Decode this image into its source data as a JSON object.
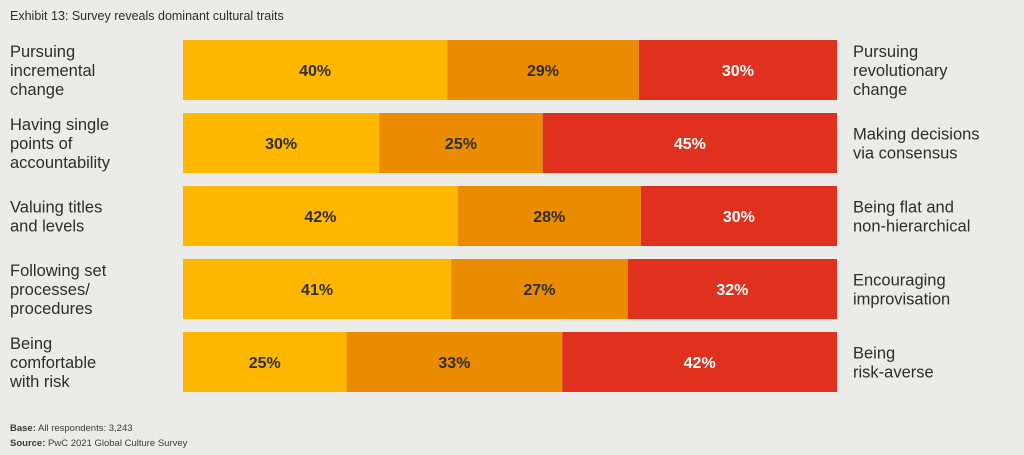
{
  "title": "Exhibit 13: Survey reveals dominant cultural traits",
  "colors": {
    "left": "#ffb700",
    "middle": "#eb8c00",
    "right": "#e0301e",
    "background": "#ebebea"
  },
  "chart_data": {
    "type": "bar",
    "orientation": "horizontal",
    "stacked": true,
    "normalized": true,
    "categories": [
      {
        "left_label": "Pursuing incremental change",
        "right_label": "Pursuing revolutionary change"
      },
      {
        "left_label": "Having single points of accountability",
        "right_label": "Making decisions via consensus"
      },
      {
        "left_label": "Valuing titles and levels",
        "right_label": "Being flat and non-hierarchical"
      },
      {
        "left_label": "Following set processes/ procedures",
        "right_label": "Encouraging improvisation"
      },
      {
        "left_label": "Being comfortable with risk",
        "right_label": "Being risk-averse"
      }
    ],
    "left_lines": [
      [
        "Pursuing",
        "incremental",
        "change"
      ],
      [
        "Having single",
        "points of",
        "accountability"
      ],
      [
        "Valuing titles",
        "and levels"
      ],
      [
        "Following set",
        "processes/",
        "procedures"
      ],
      [
        "Being",
        "comfortable",
        "with risk"
      ]
    ],
    "right_lines": [
      [
        "Pursuing",
        "revolutionary",
        "change"
      ],
      [
        "Making decisions",
        "via consensus"
      ],
      [
        "Being flat and",
        "non-hierarchical"
      ],
      [
        "Encouraging",
        "improvisation"
      ],
      [
        "Being",
        "risk-averse"
      ]
    ],
    "series": [
      {
        "values": [
          40,
          30,
          42,
          41,
          25
        ]
      },
      {
        "values": [
          29,
          25,
          28,
          27,
          33
        ]
      },
      {
        "values": [
          30,
          45,
          30,
          32,
          42
        ]
      }
    ],
    "value_suffix": "%",
    "grid": false,
    "legend": "none"
  },
  "footer": {
    "base_label": "Base:",
    "base_text": "All respondents: 3,243",
    "source_label": "Source:",
    "source_text": "PwC 2021 Global Culture Survey"
  }
}
